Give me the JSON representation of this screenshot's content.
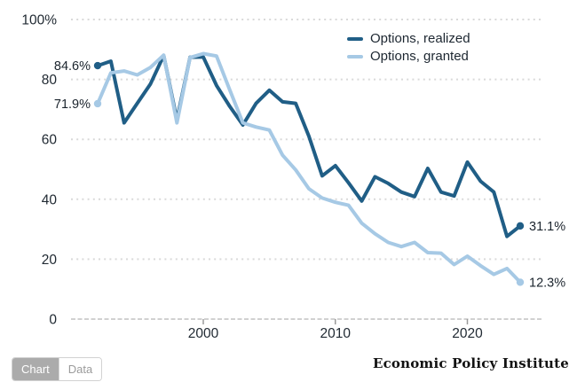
{
  "chart_data": {
    "type": "line",
    "title": "",
    "xlabel": "",
    "ylabel": "",
    "x": [
      1992,
      1993,
      1994,
      1995,
      1996,
      1997,
      1998,
      1999,
      2000,
      2001,
      2002,
      2003,
      2004,
      2005,
      2006,
      2007,
      2008,
      2009,
      2010,
      2011,
      2012,
      2013,
      2014,
      2015,
      2016,
      2017,
      2018,
      2019,
      2020,
      2021,
      2022,
      2023,
      2024
    ],
    "series": [
      {
        "name": "Options, realized",
        "color": "#205E86",
        "start_label": "84.6%",
        "end_label": "31.1%",
        "values": [
          84.6,
          86.1,
          65.5,
          72.0,
          78.5,
          88.0,
          66.5,
          87.4,
          87.5,
          78.0,
          71.0,
          64.8,
          72.0,
          76.4,
          72.5,
          72.0,
          61.0,
          47.8,
          51.2,
          45.5,
          39.4,
          47.5,
          45.3,
          42.4,
          40.9,
          50.3,
          42.4,
          41.1,
          52.4,
          46.0,
          42.4,
          27.6,
          31.1
        ]
      },
      {
        "name": "Options, granted",
        "color": "#A6C9E5",
        "start_label": "71.9%",
        "end_label": "12.3%",
        "values": [
          71.9,
          82.2,
          82.8,
          81.5,
          84.0,
          88.1,
          65.5,
          87.3,
          88.6,
          87.8,
          76.5,
          65.5,
          64.1,
          63.1,
          54.7,
          49.8,
          43.5,
          40.4,
          39.0,
          38.0,
          32.0,
          28.5,
          25.6,
          24.2,
          25.6,
          22.2,
          22.0,
          18.2,
          21.0,
          17.8,
          14.9,
          16.9,
          12.3
        ]
      }
    ],
    "ylim": [
      0,
      100
    ],
    "yticks": [
      0,
      20,
      40,
      60,
      80,
      100
    ],
    "ytick_labels": [
      "0",
      "20",
      "40",
      "60",
      "80",
      "100%"
    ],
    "xticks": [
      2000,
      2010,
      2020
    ],
    "xtick_labels": [
      "2000",
      "2010",
      "2020"
    ],
    "grid": "horizontal dotted",
    "legend_position": "top-right"
  },
  "legend": {
    "items": [
      {
        "label": "Options, realized"
      },
      {
        "label": "Options, granted"
      }
    ]
  },
  "footer": {
    "brand": "Economic Policy Institute",
    "toggle": {
      "chart_label": "Chart",
      "data_label": "Data",
      "active": "Chart"
    }
  },
  "colors": {
    "realized_line": "#205E86",
    "granted_line": "#A6C9E5",
    "tick_text": "#212a33",
    "gridline": "#d9d9d9",
    "brand_text": "#121212",
    "toggle_active_bg": "#ababab"
  }
}
